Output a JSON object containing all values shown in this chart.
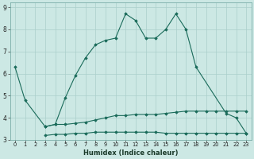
{
  "xlabel": "Humidex (Indice chaleur)",
  "background_color": "#cce8e4",
  "line_color": "#1a6b5a",
  "grid_color": "#aacfcb",
  "xlim": [
    -0.5,
    23.5
  ],
  "ylim": [
    3,
    9.2
  ],
  "yticks": [
    3,
    4,
    5,
    6,
    7,
    8,
    9
  ],
  "xticks": [
    0,
    1,
    2,
    3,
    4,
    5,
    6,
    7,
    8,
    9,
    10,
    11,
    12,
    13,
    14,
    15,
    16,
    17,
    18,
    19,
    20,
    21,
    22,
    23
  ],
  "series": [
    {
      "x": [
        0,
        1,
        3,
        4,
        5,
        6,
        7,
        8,
        9,
        10,
        11,
        12,
        13,
        14,
        15,
        16,
        17,
        18,
        21,
        22,
        23
      ],
      "y": [
        6.3,
        4.8,
        3.6,
        3.7,
        4.9,
        5.9,
        6.7,
        7.3,
        7.5,
        7.6,
        8.7,
        8.4,
        7.6,
        7.6,
        8.0,
        8.7,
        8.0,
        6.3,
        4.2,
        4.0,
        3.3
      ]
    },
    {
      "x": [
        3,
        4,
        5,
        6,
        7,
        8,
        9,
        10,
        11,
        12,
        13,
        14,
        15,
        16,
        17,
        18,
        19,
        20,
        21,
        22,
        23
      ],
      "y": [
        3.6,
        3.7,
        3.7,
        3.75,
        3.8,
        3.9,
        4.0,
        4.1,
        4.1,
        4.15,
        4.15,
        4.15,
        4.2,
        4.25,
        4.3,
        4.3,
        4.3,
        4.3,
        4.3,
        4.3,
        4.3
      ]
    },
    {
      "x": [
        3,
        4,
        5,
        6,
        7,
        8,
        9,
        10,
        11,
        12,
        13,
        14,
        15,
        16,
        17,
        18,
        19,
        20,
        21,
        22,
        23
      ],
      "y": [
        3.2,
        3.25,
        3.25,
        3.3,
        3.3,
        3.35,
        3.35,
        3.35,
        3.35,
        3.35,
        3.35,
        3.35,
        3.3,
        3.3,
        3.3,
        3.3,
        3.3,
        3.3,
        3.3,
        3.3,
        3.3
      ]
    }
  ]
}
